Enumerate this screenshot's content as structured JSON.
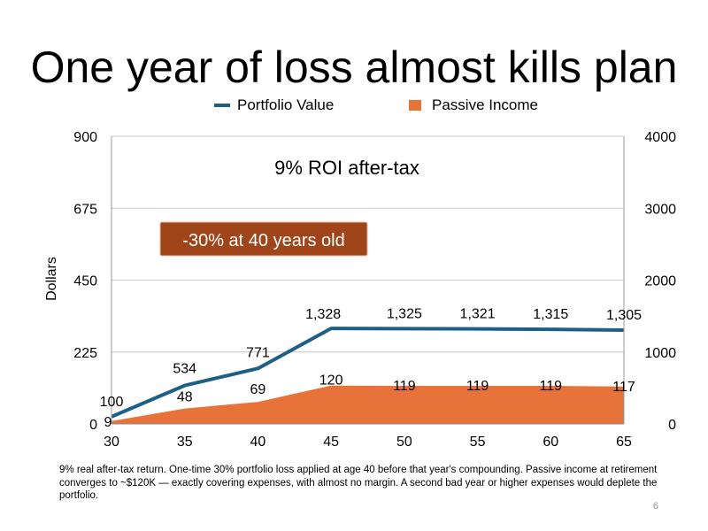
{
  "slide": {
    "title": "One year of loss almost kills plan",
    "footnote": "9% real after-tax return. One-time 30% portfolio loss applied at age 40 before that year's compounding. Passive income at retirement converges to ~$120K — exactly covering expenses, with almost no margin. A second bad year or higher expenses would deplete the portfolio.",
    "page_number": "6"
  },
  "colors": {
    "portfolio_line": "#1f5f87",
    "passive_area": "#e8733a",
    "callout_bg": "#a0441a",
    "gridline": "#c8c8c8"
  },
  "chart_data": {
    "type": "area",
    "legend": {
      "position": "top",
      "items": [
        "Portfolio Value",
        "Passive Income"
      ]
    },
    "inner_title": "9% ROI after-tax",
    "annotation": "-30% at 40 years old",
    "ylabel": "Dollars",
    "x": [
      30,
      35,
      40,
      45,
      50,
      55,
      60,
      65
    ],
    "x_tick_labels": [
      "30",
      "35",
      "40",
      "45",
      "50",
      "55",
      "60",
      "65"
    ],
    "y_left": {
      "ylim": [
        0,
        900
      ],
      "tick_labels": [
        "0",
        "225",
        "450",
        "675",
        "900"
      ]
    },
    "y_right": {
      "ylim": [
        0,
        4000
      ],
      "tick_labels": [
        "0",
        "1000",
        "2000",
        "3000",
        "4000"
      ]
    },
    "grid": true,
    "series": [
      {
        "name": "Portfolio Value",
        "type": "line",
        "axis": "right",
        "values": [
          100,
          534,
          771,
          1328,
          1325,
          1321,
          1315,
          1305
        ],
        "labels": [
          "100",
          "534",
          "771",
          "1,328",
          "1,325",
          "1,321",
          "1,315",
          "1,305"
        ]
      },
      {
        "name": "Passive Income",
        "type": "area",
        "axis": "left",
        "values": [
          9,
          48,
          69,
          120,
          119,
          119,
          119,
          117
        ],
        "labels": [
          "9",
          "48",
          "69",
          "120",
          "119",
          "119",
          "119",
          "117"
        ]
      }
    ]
  }
}
